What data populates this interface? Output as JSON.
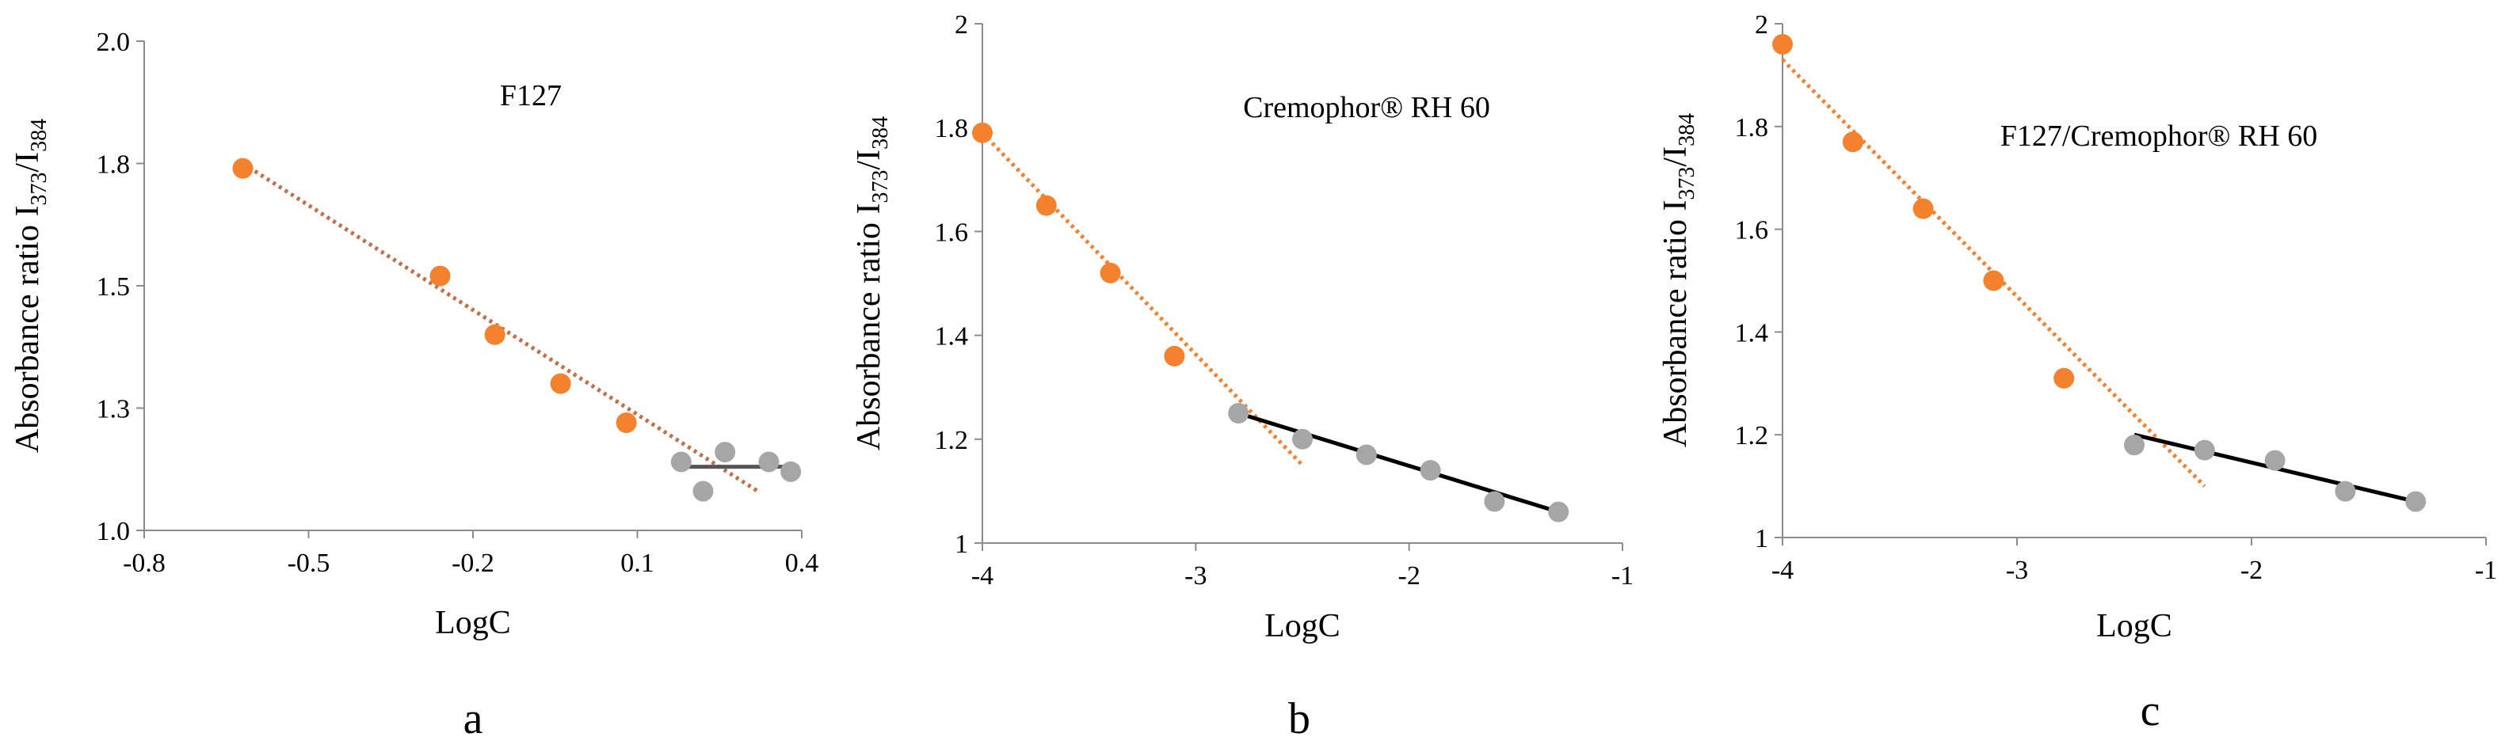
{
  "chart_data": [
    {
      "type": "scatter",
      "panel_label": "a",
      "title": "F127",
      "xlabel": "LogC",
      "ylabel": {
        "main": "Absorbance ratio I",
        "sub1": "373",
        "sep": "/I",
        "sub2": "384"
      },
      "xlim": [
        -0.8,
        0.4
      ],
      "ylim": [
        1.0,
        2.0
      ],
      "xticks": [
        -0.8,
        -0.5,
        -0.2,
        0.1,
        0.4
      ],
      "xtick_labels": [
        "-0.8",
        "-0.5",
        "-0.2",
        "0.1",
        "0.4"
      ],
      "yticks": [
        1.0,
        1.25,
        1.5,
        1.75,
        2.0
      ],
      "ytick_labels": [
        "1.0",
        "1.3",
        "1.5",
        "1.8",
        "2.0"
      ],
      "grid": false,
      "series": [
        {
          "color": "#F4812E",
          "marker": "circle",
          "x": [
            -0.62,
            -0.26,
            -0.16,
            -0.04,
            0.08
          ],
          "y": [
            1.74,
            1.52,
            1.4,
            1.3,
            1.22
          ]
        },
        {
          "color": "#A6A6A6",
          "marker": "circle",
          "x": [
            0.18,
            0.22,
            0.26,
            0.34,
            0.38
          ],
          "y": [
            1.14,
            1.08,
            1.16,
            1.14,
            1.12
          ]
        }
      ],
      "trendlines": [
        {
          "color": "#C0704A",
          "style": "dotted",
          "x": [
            -0.62,
            0.32
          ],
          "y": [
            1.75,
            1.08
          ]
        },
        {
          "color": "#555555",
          "style": "solid",
          "x": [
            0.18,
            0.38
          ],
          "y": [
            1.13,
            1.13
          ]
        }
      ]
    },
    {
      "type": "scatter",
      "panel_label": "b",
      "title": "Cremophor® RH 60",
      "xlabel": "LogC",
      "ylabel": {
        "main": "Absorbance ratio I",
        "sub1": "373",
        "sep": "/I",
        "sub2": "384"
      },
      "xlim": [
        -4,
        -1
      ],
      "ylim": [
        1.0,
        2.0
      ],
      "xticks": [
        -4,
        -3,
        -2,
        -1
      ],
      "xtick_labels": [
        "-4",
        "-3",
        "-2",
        "-1"
      ],
      "yticks": [
        1.0,
        1.2,
        1.4,
        1.6,
        1.8,
        2.0
      ],
      "ytick_labels": [
        "1",
        "1.2",
        "1.4",
        "1.6",
        "1.8",
        "2"
      ],
      "grid": false,
      "series": [
        {
          "color": "#F4812E",
          "marker": "circle",
          "x": [
            -4.0,
            -3.7,
            -3.4,
            -3.1
          ],
          "y": [
            1.79,
            1.65,
            1.52,
            1.36
          ]
        },
        {
          "color": "#A6A6A6",
          "marker": "circle",
          "x": [
            -2.8,
            -2.5,
            -2.2,
            -1.9,
            -1.6,
            -1.3
          ],
          "y": [
            1.25,
            1.2,
            1.17,
            1.14,
            1.08,
            1.06
          ]
        }
      ],
      "trendlines": [
        {
          "color": "#F4812E",
          "style": "dotted",
          "x": [
            -4.0,
            -2.5
          ],
          "y": [
            1.79,
            1.15
          ]
        },
        {
          "color": "#000000",
          "style": "solid",
          "x": [
            -2.8,
            -1.3
          ],
          "y": [
            1.25,
            1.06
          ]
        }
      ]
    },
    {
      "type": "scatter",
      "panel_label": "c",
      "title": "F127/Cremophor® RH 60",
      "xlabel": "LogC",
      "ylabel": {
        "main": "Absorbance ratio I",
        "sub1": "373",
        "sep": "/I",
        "sub2": "384"
      },
      "xlim": [
        -4,
        -1
      ],
      "ylim": [
        1.0,
        2.0
      ],
      "xticks": [
        -4,
        -3,
        -2,
        -1
      ],
      "xtick_labels": [
        "-4",
        "-3",
        "-2",
        "-1"
      ],
      "yticks": [
        1.0,
        1.2,
        1.4,
        1.6,
        1.8,
        2.0
      ],
      "ytick_labels": [
        "1",
        "1.2",
        "1.4",
        "1.6",
        "1.8",
        "2"
      ],
      "grid": false,
      "series": [
        {
          "color": "#F4812E",
          "marker": "circle",
          "x": [
            -4.0,
            -3.7,
            -3.4,
            -3.1,
            -2.8
          ],
          "y": [
            1.96,
            1.77,
            1.64,
            1.5,
            1.31
          ]
        },
        {
          "color": "#A6A6A6",
          "marker": "circle",
          "x": [
            -2.5,
            -2.2,
            -1.9,
            -1.6,
            -1.3
          ],
          "y": [
            1.18,
            1.17,
            1.15,
            1.09,
            1.07
          ]
        }
      ],
      "trendlines": [
        {
          "color": "#F4812E",
          "style": "dotted",
          "x": [
            -4.0,
            -2.2
          ],
          "y": [
            1.93,
            1.1
          ]
        },
        {
          "color": "#000000",
          "style": "solid",
          "x": [
            -2.5,
            -1.3
          ],
          "y": [
            1.2,
            1.07
          ]
        }
      ]
    }
  ]
}
